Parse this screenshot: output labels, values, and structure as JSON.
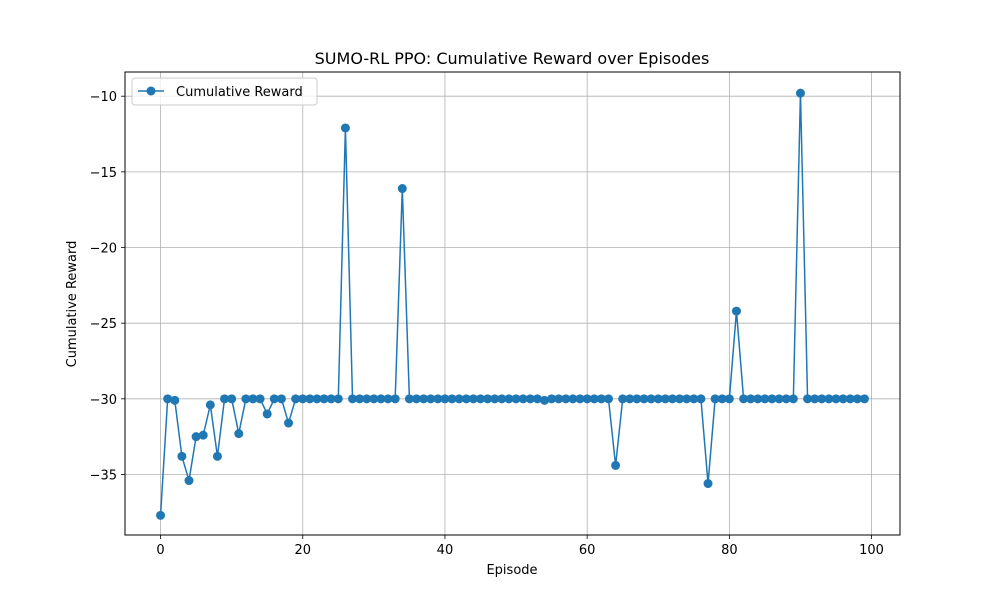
{
  "chart_data": {
    "type": "line",
    "title": "SUMO-RL PPO: Cumulative Reward over Episodes",
    "xlabel": "Episode",
    "ylabel": "Cumulative Reward",
    "xlim": [
      -5,
      104
    ],
    "ylim": [
      -39.0,
      -8.4
    ],
    "xticks": [
      0,
      20,
      40,
      60,
      80,
      100
    ],
    "yticks": [
      -35,
      -30,
      -25,
      -20,
      -15,
      -10
    ],
    "grid": true,
    "legend_position": "top-left",
    "series": [
      {
        "name": "Cumulative Reward",
        "color": "#1f77b4",
        "marker": "circle",
        "x": [
          0,
          1,
          2,
          3,
          4,
          5,
          6,
          7,
          8,
          9,
          10,
          11,
          12,
          13,
          14,
          15,
          16,
          17,
          18,
          19,
          20,
          21,
          22,
          23,
          24,
          25,
          26,
          27,
          28,
          29,
          30,
          31,
          32,
          33,
          34,
          35,
          36,
          37,
          38,
          39,
          40,
          41,
          42,
          43,
          44,
          45,
          46,
          47,
          48,
          49,
          50,
          51,
          52,
          53,
          54,
          55,
          56,
          57,
          58,
          59,
          60,
          61,
          62,
          63,
          64,
          65,
          66,
          67,
          68,
          69,
          70,
          71,
          72,
          73,
          74,
          75,
          76,
          77,
          78,
          79,
          80,
          81,
          82,
          83,
          84,
          85,
          86,
          87,
          88,
          89,
          90,
          91,
          92,
          93,
          94,
          95,
          96,
          97,
          98,
          99
        ],
        "y": [
          -37.7,
          -30.0,
          -30.1,
          -33.8,
          -35.4,
          -32.5,
          -32.4,
          -30.4,
          -33.8,
          -30.0,
          -30.0,
          -32.3,
          -30.0,
          -30.0,
          -30.0,
          -31.0,
          -30.0,
          -30.0,
          -31.6,
          -30.0,
          -30.0,
          -30.0,
          -30.0,
          -30.0,
          -30.0,
          -30.0,
          -12.1,
          -30.0,
          -30.0,
          -30.0,
          -30.0,
          -30.0,
          -30.0,
          -30.0,
          -16.1,
          -30.0,
          -30.0,
          -30.0,
          -30.0,
          -30.0,
          -30.0,
          -30.0,
          -30.0,
          -30.0,
          -30.0,
          -30.0,
          -30.0,
          -30.0,
          -30.0,
          -30.0,
          -30.0,
          -30.0,
          -30.0,
          -30.0,
          -30.1,
          -30.0,
          -30.0,
          -30.0,
          -30.0,
          -30.0,
          -30.0,
          -30.0,
          -30.0,
          -30.0,
          -34.4,
          -30.0,
          -30.0,
          -30.0,
          -30.0,
          -30.0,
          -30.0,
          -30.0,
          -30.0,
          -30.0,
          -30.0,
          -30.0,
          -30.0,
          -35.6,
          -30.0,
          -30.0,
          -30.0,
          -24.2,
          -30.0,
          -30.0,
          -30.0,
          -30.0,
          -30.0,
          -30.0,
          -30.0,
          -30.0,
          -9.8,
          -30.0,
          -30.0,
          -30.0,
          -30.0,
          -30.0,
          -30.0,
          -30.0,
          -30.0,
          -30.0
        ]
      }
    ]
  }
}
